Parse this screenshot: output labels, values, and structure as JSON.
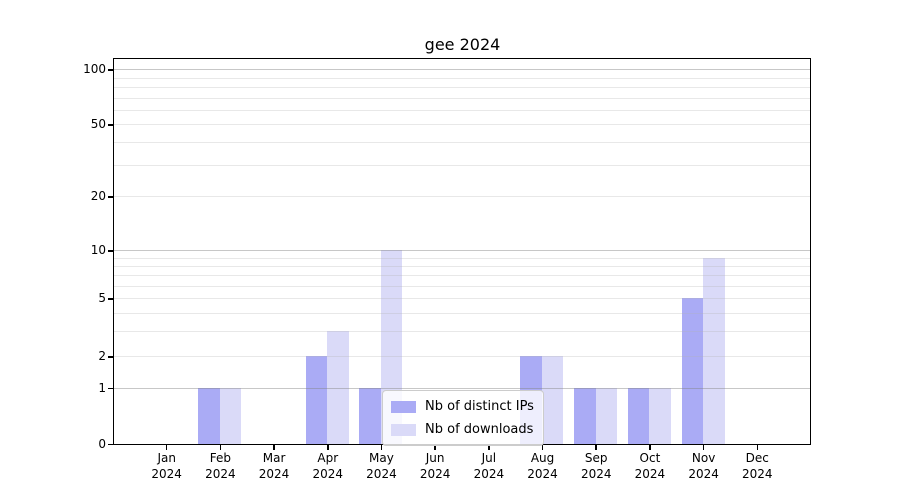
{
  "title": "gee 2024",
  "chart_data": {
    "type": "bar",
    "title": "gee 2024",
    "categories": [
      {
        "month": "Jan",
        "year": "2024"
      },
      {
        "month": "Feb",
        "year": "2024"
      },
      {
        "month": "Mar",
        "year": "2024"
      },
      {
        "month": "Apr",
        "year": "2024"
      },
      {
        "month": "May",
        "year": "2024"
      },
      {
        "month": "Jun",
        "year": "2024"
      },
      {
        "month": "Jul",
        "year": "2024"
      },
      {
        "month": "Aug",
        "year": "2024"
      },
      {
        "month": "Sep",
        "year": "2024"
      },
      {
        "month": "Oct",
        "year": "2024"
      },
      {
        "month": "Nov",
        "year": "2024"
      },
      {
        "month": "Dec",
        "year": "2024"
      }
    ],
    "series": [
      {
        "name": "Nb of distinct IPs",
        "color": "#aaabf5",
        "values": [
          0,
          1,
          0,
          2,
          1,
          0,
          0,
          2,
          1,
          1,
          5,
          0
        ]
      },
      {
        "name": "Nb of downloads",
        "color": "#dadaf8",
        "values": [
          0,
          1,
          0,
          3,
          10,
          0,
          0,
          2,
          1,
          1,
          9,
          0
        ]
      }
    ],
    "yticks": [
      0,
      1,
      2,
      5,
      10,
      20,
      50,
      100
    ],
    "ytick_styles": {
      "major": [
        1,
        10,
        100
      ],
      "minor_labeled": [
        2,
        5,
        20,
        50
      ]
    },
    "minor_grid_values": [
      3,
      4,
      6,
      7,
      8,
      9,
      30,
      40,
      60,
      70,
      80,
      90
    ],
    "ylim": [
      0,
      100
    ],
    "xlabel": "",
    "ylabel": "",
    "scale": "symlog-like",
    "grid": "horizontal",
    "legend_position": "lower center"
  }
}
